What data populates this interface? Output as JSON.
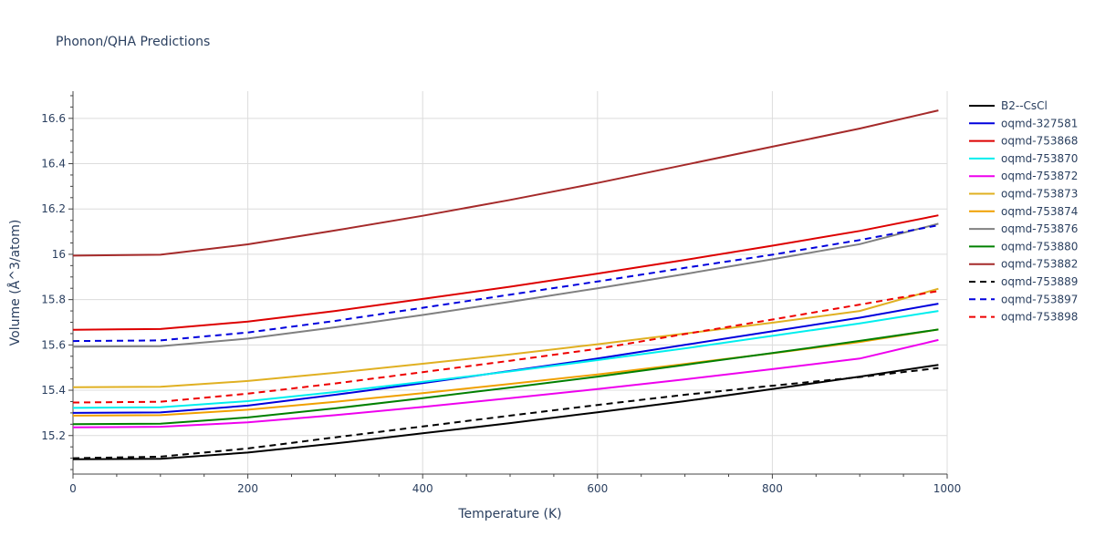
{
  "chart_data": {
    "type": "line",
    "title": "Phonon/QHA Predictions",
    "xlabel": "Temperature (K)",
    "ylabel": "Volume (Å^3/atom)",
    "xlim": [
      0,
      1000
    ],
    "ylim": [
      15.03,
      16.72
    ],
    "x_ticks": [
      "0",
      "200",
      "400",
      "600",
      "800",
      "1000"
    ],
    "y_ticks": [
      "15.2",
      "15.4",
      "15.6",
      "15.8",
      "16",
      "16.2",
      "16.4",
      "16.6"
    ],
    "grid": true,
    "legend_position": "right",
    "x": [
      0,
      100,
      200,
      300,
      400,
      500,
      600,
      700,
      800,
      900,
      990
    ],
    "series": [
      {
        "name": "B2--CsCl",
        "color": "#000000",
        "dash": "solid",
        "values": [
          15.095,
          15.097,
          15.125,
          15.165,
          15.21,
          15.255,
          15.303,
          15.352,
          15.405,
          15.46,
          15.512
        ]
      },
      {
        "name": "oqmd-327581",
        "color": "#0000dd",
        "dash": "solid",
        "values": [
          15.3,
          15.302,
          15.332,
          15.38,
          15.431,
          15.485,
          15.54,
          15.6,
          15.66,
          15.72,
          15.782
        ]
      },
      {
        "name": "oqmd-753868",
        "color": "#dd0000",
        "dash": "solid",
        "values": [
          15.667,
          15.67,
          15.703,
          15.75,
          15.803,
          15.857,
          15.915,
          15.975,
          16.038,
          16.103,
          16.172
        ]
      },
      {
        "name": "oqmd-753870",
        "color": "#00eeee",
        "dash": "solid",
        "values": [
          15.322,
          15.325,
          15.352,
          15.392,
          15.437,
          15.483,
          15.533,
          15.585,
          15.64,
          15.695,
          15.75
        ]
      },
      {
        "name": "oqmd-753872",
        "color": "#ee00ee",
        "dash": "solid",
        "values": [
          15.236,
          15.239,
          15.258,
          15.29,
          15.326,
          15.365,
          15.405,
          15.448,
          15.493,
          15.54,
          15.622
        ]
      },
      {
        "name": "oqmd-753873",
        "color": "#e0b022",
        "dash": "solid",
        "values": [
          15.413,
          15.415,
          15.441,
          15.477,
          15.517,
          15.558,
          15.603,
          15.65,
          15.698,
          15.75,
          15.848
        ]
      },
      {
        "name": "oqmd-753874",
        "color": "#f0a000",
        "dash": "solid",
        "values": [
          15.288,
          15.29,
          15.314,
          15.349,
          15.387,
          15.428,
          15.47,
          15.516,
          15.563,
          15.613,
          15.668
        ]
      },
      {
        "name": "oqmd-753876",
        "color": "#808080",
        "dash": "solid",
        "values": [
          15.592,
          15.594,
          15.628,
          15.678,
          15.732,
          15.79,
          15.85,
          15.913,
          15.978,
          16.045,
          16.135
        ]
      },
      {
        "name": "oqmd-753880",
        "color": "#008000",
        "dash": "solid",
        "values": [
          15.25,
          15.252,
          15.28,
          15.32,
          15.365,
          15.412,
          15.46,
          15.512,
          15.564,
          15.618,
          15.668
        ]
      },
      {
        "name": "oqmd-753882",
        "color": "#a52a2a",
        "dash": "solid",
        "values": [
          15.994,
          15.998,
          16.044,
          16.105,
          16.17,
          16.24,
          16.315,
          16.395,
          16.475,
          16.555,
          16.635
        ]
      },
      {
        "name": "oqmd-753889",
        "color": "#000000",
        "dash": "dash",
        "values": [
          15.1,
          15.107,
          15.143,
          15.192,
          15.24,
          15.288,
          15.335,
          15.38,
          15.42,
          15.458,
          15.498
        ]
      },
      {
        "name": "oqmd-753897",
        "color": "#0000dd",
        "dash": "dash",
        "values": [
          15.617,
          15.62,
          15.655,
          15.706,
          15.764,
          15.822,
          15.88,
          15.94,
          15.998,
          16.063,
          16.128
        ]
      },
      {
        "name": "oqmd-753898",
        "color": "#ee0000",
        "dash": "dash",
        "values": [
          15.346,
          15.349,
          15.385,
          15.43,
          15.48,
          15.53,
          15.583,
          15.648,
          15.712,
          15.778,
          15.838
        ]
      }
    ]
  }
}
